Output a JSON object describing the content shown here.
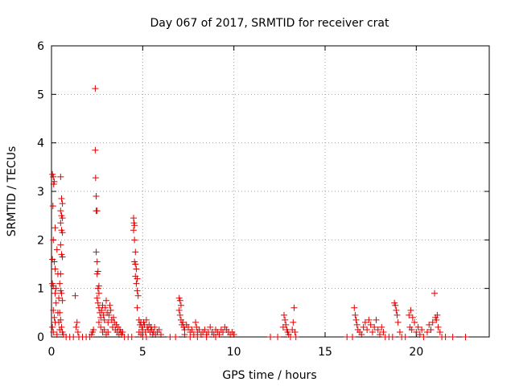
{
  "chart_data": {
    "type": "scatter",
    "title": "Day 067 of 2017, SRMTID for receiver crat",
    "xlabel": "GPS time / hours",
    "ylabel": "SRMTID / TECUs",
    "xlim": [
      0,
      24
    ],
    "ylim": [
      0,
      6
    ],
    "x_ticks": [
      "0",
      "5",
      "10",
      "15",
      "20"
    ],
    "y_ticks": [
      "0",
      "1",
      "2",
      "3",
      "4",
      "5",
      "6"
    ],
    "x_tick_values": [
      0,
      5,
      10,
      15,
      20
    ],
    "y_tick_values": [
      0,
      1,
      2,
      3,
      4,
      5,
      6
    ],
    "grid": true,
    "marker": "plus",
    "color": "#e00000",
    "series": [
      {
        "name": "SRMTID",
        "points": [
          [
            0.05,
            3.35
          ],
          [
            0.1,
            3.3
          ],
          [
            0.12,
            3.15
          ],
          [
            0.15,
            3.2
          ],
          [
            0.08,
            2.7
          ],
          [
            0.2,
            2.25
          ],
          [
            0.1,
            2.0
          ],
          [
            0.05,
            1.6
          ],
          [
            0.15,
            1.55
          ],
          [
            0.2,
            1.4
          ],
          [
            0.05,
            1.1
          ],
          [
            0.1,
            1.05
          ],
          [
            0.2,
            0.9
          ],
          [
            0.25,
            0.7
          ],
          [
            0.1,
            0.55
          ],
          [
            0.15,
            0.4
          ],
          [
            0.2,
            0.3
          ],
          [
            0.05,
            0.2
          ],
          [
            0.1,
            0.1
          ],
          [
            0.3,
            0.05
          ],
          [
            0.35,
            0.5
          ],
          [
            0.4,
            0.3
          ],
          [
            0.45,
            0.15
          ],
          [
            0.3,
            1.8
          ],
          [
            0.35,
            1.3
          ],
          [
            0.25,
            1.0
          ],
          [
            0.4,
            0.8
          ],
          [
            0.5,
            3.3
          ],
          [
            0.55,
            2.85
          ],
          [
            0.6,
            2.75
          ],
          [
            0.5,
            2.6
          ],
          [
            0.55,
            2.5
          ],
          [
            0.6,
            2.45
          ],
          [
            0.5,
            2.35
          ],
          [
            0.55,
            2.2
          ],
          [
            0.6,
            2.15
          ],
          [
            0.5,
            1.9
          ],
          [
            0.55,
            1.7
          ],
          [
            0.6,
            1.65
          ],
          [
            0.5,
            1.3
          ],
          [
            0.45,
            1.1
          ],
          [
            0.5,
            0.95
          ],
          [
            0.55,
            0.9
          ],
          [
            0.6,
            0.75
          ],
          [
            0.45,
            0.5
          ],
          [
            0.5,
            0.35
          ],
          [
            0.55,
            0.2
          ],
          [
            0.6,
            0.1
          ],
          [
            0.65,
            0.05
          ],
          [
            0.8,
            0.0
          ],
          [
            1.0,
            0.0
          ],
          [
            1.2,
            0.0
          ],
          [
            1.3,
            0.85
          ],
          [
            1.4,
            0.3
          ],
          [
            1.35,
            0.2
          ],
          [
            1.45,
            0.1
          ],
          [
            1.5,
            0.0
          ],
          [
            1.7,
            0.0
          ],
          [
            1.9,
            0.0
          ],
          [
            2.1,
            0.0
          ],
          [
            2.2,
            0.05
          ],
          [
            2.25,
            0.1
          ],
          [
            2.3,
            0.15
          ],
          [
            2.4,
            5.12
          ],
          [
            2.4,
            3.85
          ],
          [
            2.42,
            3.28
          ],
          [
            2.45,
            2.9
          ],
          [
            2.45,
            2.6
          ],
          [
            2.5,
            2.6
          ],
          [
            2.45,
            1.75
          ],
          [
            2.5,
            1.55
          ],
          [
            2.55,
            1.35
          ],
          [
            2.5,
            1.3
          ],
          [
            2.6,
            1.05
          ],
          [
            2.55,
            1.0
          ],
          [
            2.6,
            0.9
          ],
          [
            2.5,
            0.8
          ],
          [
            2.55,
            0.7
          ],
          [
            2.6,
            0.6
          ],
          [
            2.65,
            0.5
          ],
          [
            2.7,
            0.4
          ],
          [
            2.75,
            0.55
          ],
          [
            2.8,
            0.65
          ],
          [
            2.85,
            0.45
          ],
          [
            2.9,
            0.35
          ],
          [
            2.95,
            0.6
          ],
          [
            3.0,
            0.75
          ],
          [
            3.05,
            0.5
          ],
          [
            3.1,
            0.3
          ],
          [
            3.15,
            0.45
          ],
          [
            3.2,
            0.65
          ],
          [
            3.25,
            0.55
          ],
          [
            3.3,
            0.35
          ],
          [
            3.35,
            0.2
          ],
          [
            3.4,
            0.4
          ],
          [
            3.45,
            0.3
          ],
          [
            3.5,
            0.15
          ],
          [
            3.55,
            0.25
          ],
          [
            3.6,
            0.1
          ],
          [
            3.65,
            0.2
          ],
          [
            3.7,
            0.05
          ],
          [
            3.75,
            0.15
          ],
          [
            3.8,
            0.1
          ],
          [
            3.85,
            0.05
          ],
          [
            3.9,
            0.1
          ],
          [
            4.0,
            0.0
          ],
          [
            4.2,
            0.0
          ],
          [
            4.4,
            0.0
          ],
          [
            2.7,
            0.2
          ],
          [
            2.8,
            0.1
          ],
          [
            2.9,
            0.15
          ],
          [
            3.0,
            0.05
          ],
          [
            3.1,
            0.1
          ],
          [
            2.6,
            0.3
          ],
          [
            4.5,
            2.45
          ],
          [
            4.52,
            2.35
          ],
          [
            4.55,
            2.3
          ],
          [
            4.5,
            2.2
          ],
          [
            4.55,
            2.0
          ],
          [
            4.6,
            1.75
          ],
          [
            4.55,
            1.55
          ],
          [
            4.6,
            1.5
          ],
          [
            4.65,
            1.4
          ],
          [
            4.6,
            1.25
          ],
          [
            4.7,
            1.2
          ],
          [
            4.65,
            1.1
          ],
          [
            4.7,
            0.95
          ],
          [
            4.75,
            0.85
          ],
          [
            4.7,
            0.6
          ],
          [
            4.8,
            0.35
          ],
          [
            4.85,
            0.25
          ],
          [
            4.9,
            0.3
          ],
          [
            4.95,
            0.2
          ],
          [
            5.0,
            0.15
          ],
          [
            5.05,
            0.3
          ],
          [
            5.1,
            0.25
          ],
          [
            5.15,
            0.1
          ],
          [
            5.2,
            0.35
          ],
          [
            5.25,
            0.2
          ],
          [
            5.3,
            0.15
          ],
          [
            5.35,
            0.25
          ],
          [
            5.4,
            0.1
          ],
          [
            5.45,
            0.2
          ],
          [
            5.5,
            0.15
          ],
          [
            5.55,
            0.05
          ],
          [
            5.6,
            0.1
          ],
          [
            5.65,
            0.2
          ],
          [
            5.7,
            0.05
          ],
          [
            5.8,
            0.1
          ],
          [
            5.9,
            0.15
          ],
          [
            6.0,
            0.05
          ],
          [
            4.8,
            0.1
          ],
          [
            4.9,
            0.05
          ],
          [
            5.0,
            0.0
          ],
          [
            5.2,
            0.0
          ],
          [
            6.5,
            0.0
          ],
          [
            6.8,
            0.0
          ],
          [
            7.0,
            0.8
          ],
          [
            7.05,
            0.75
          ],
          [
            7.1,
            0.65
          ],
          [
            7.0,
            0.55
          ],
          [
            7.05,
            0.45
          ],
          [
            7.1,
            0.35
          ],
          [
            7.15,
            0.25
          ],
          [
            7.2,
            0.3
          ],
          [
            7.25,
            0.2
          ],
          [
            7.3,
            0.15
          ],
          [
            7.4,
            0.25
          ],
          [
            7.5,
            0.2
          ],
          [
            7.6,
            0.1
          ],
          [
            7.7,
            0.15
          ],
          [
            7.8,
            0.05
          ],
          [
            7.9,
            0.3
          ],
          [
            7.95,
            0.2
          ],
          [
            8.0,
            0.1
          ],
          [
            8.1,
            0.15
          ],
          [
            8.2,
            0.05
          ],
          [
            8.3,
            0.1
          ],
          [
            8.4,
            0.15
          ],
          [
            8.5,
            0.05
          ],
          [
            8.6,
            0.1
          ],
          [
            8.7,
            0.2
          ],
          [
            8.8,
            0.1
          ],
          [
            8.9,
            0.05
          ],
          [
            9.0,
            0.15
          ],
          [
            9.1,
            0.1
          ],
          [
            9.2,
            0.05
          ],
          [
            9.3,
            0.15
          ],
          [
            9.4,
            0.1
          ],
          [
            9.5,
            0.2
          ],
          [
            9.6,
            0.15
          ],
          [
            9.7,
            0.1
          ],
          [
            9.8,
            0.05
          ],
          [
            9.9,
            0.1
          ],
          [
            10.0,
            0.05
          ],
          [
            7.3,
            0.05
          ],
          [
            7.6,
            0.0
          ],
          [
            8.0,
            0.0
          ],
          [
            8.5,
            0.0
          ],
          [
            9.0,
            0.0
          ],
          [
            12.0,
            0.0
          ],
          [
            12.4,
            0.0
          ],
          [
            12.7,
            0.2
          ],
          [
            12.75,
            0.45
          ],
          [
            12.8,
            0.35
          ],
          [
            12.85,
            0.25
          ],
          [
            12.9,
            0.15
          ],
          [
            12.95,
            0.1
          ],
          [
            13.0,
            0.05
          ],
          [
            13.1,
            0.0
          ],
          [
            13.2,
            0.15
          ],
          [
            13.25,
            0.3
          ],
          [
            13.3,
            0.6
          ],
          [
            13.35,
            0.1
          ],
          [
            13.4,
            0.0
          ],
          [
            16.2,
            0.0
          ],
          [
            16.5,
            0.0
          ],
          [
            16.6,
            0.6
          ],
          [
            16.65,
            0.45
          ],
          [
            16.7,
            0.35
          ],
          [
            16.75,
            0.25
          ],
          [
            16.8,
            0.15
          ],
          [
            16.9,
            0.1
          ],
          [
            17.0,
            0.05
          ],
          [
            17.1,
            0.2
          ],
          [
            17.2,
            0.3
          ],
          [
            17.3,
            0.15
          ],
          [
            17.4,
            0.35
          ],
          [
            17.5,
            0.25
          ],
          [
            17.6,
            0.1
          ],
          [
            17.7,
            0.2
          ],
          [
            17.8,
            0.35
          ],
          [
            17.9,
            0.15
          ],
          [
            18.0,
            0.05
          ],
          [
            18.1,
            0.2
          ],
          [
            18.2,
            0.1
          ],
          [
            18.3,
            0.0
          ],
          [
            18.5,
            0.0
          ],
          [
            18.7,
            0.0
          ],
          [
            18.8,
            0.7
          ],
          [
            18.85,
            0.65
          ],
          [
            18.9,
            0.55
          ],
          [
            18.95,
            0.45
          ],
          [
            19.0,
            0.3
          ],
          [
            19.1,
            0.1
          ],
          [
            19.2,
            0.0
          ],
          [
            19.4,
            0.0
          ],
          [
            19.6,
            0.45
          ],
          [
            19.7,
            0.55
          ],
          [
            19.8,
            0.4
          ],
          [
            19.9,
            0.3
          ],
          [
            19.65,
            0.2
          ],
          [
            19.75,
            0.15
          ],
          [
            20.0,
            0.1
          ],
          [
            20.1,
            0.2
          ],
          [
            20.2,
            0.05
          ],
          [
            20.3,
            0.15
          ],
          [
            20.4,
            0.0
          ],
          [
            20.6,
            0.1
          ],
          [
            20.7,
            0.25
          ],
          [
            20.8,
            0.15
          ],
          [
            20.9,
            0.3
          ],
          [
            21.0,
            0.9
          ],
          [
            21.05,
            0.4
          ],
          [
            21.1,
            0.35
          ],
          [
            21.15,
            0.45
          ],
          [
            21.2,
            0.2
          ],
          [
            21.3,
            0.1
          ],
          [
            21.4,
            0.0
          ],
          [
            21.6,
            0.0
          ],
          [
            22.0,
            0.0
          ],
          [
            22.7,
            0.0
          ]
        ]
      }
    ]
  }
}
